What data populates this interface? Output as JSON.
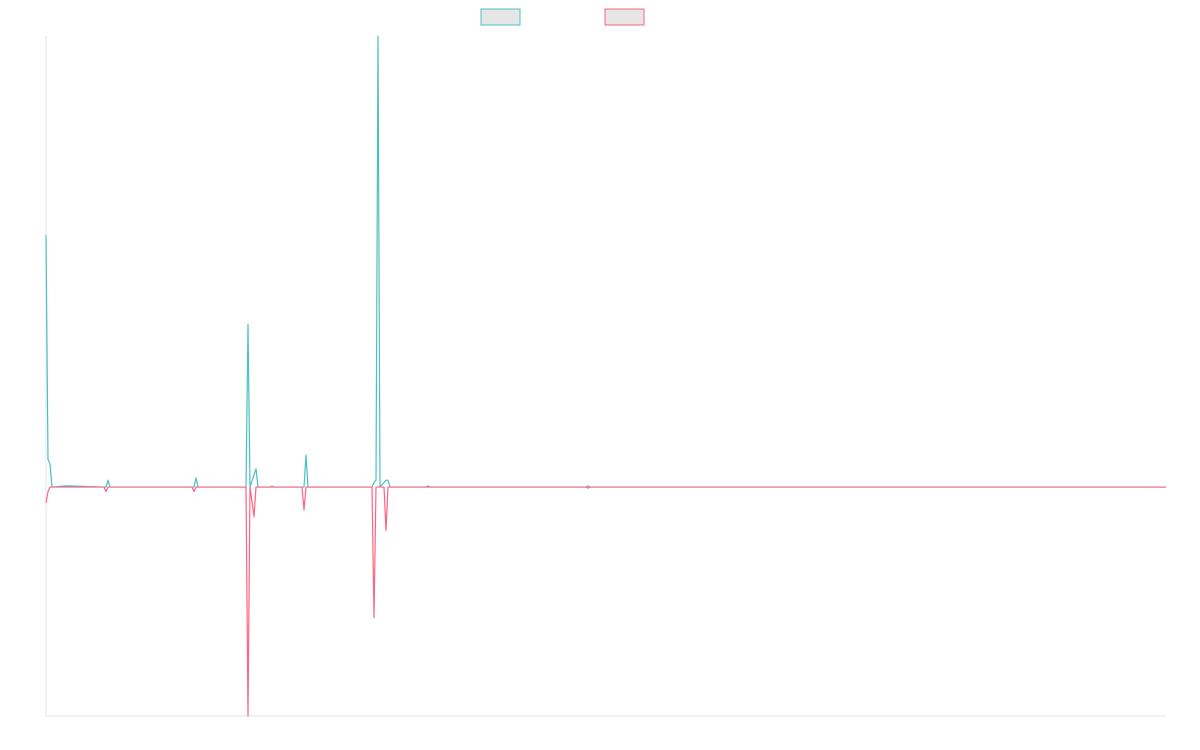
{
  "chart_data": {
    "type": "line",
    "title": "",
    "xlabel": "",
    "ylabel": "",
    "grid": false,
    "legend": {
      "position": "top-center"
    },
    "x_range": [
      0,
      560
    ],
    "ylim": [
      -1.0,
      1.97
    ],
    "series": [
      {
        "color": "#4bc0c0",
        "fill": "#e6e6e6",
        "points": [
          [
            0,
            1.1
          ],
          [
            1,
            0.12
          ],
          [
            2,
            0.1
          ],
          [
            3,
            0.0
          ],
          [
            10,
            0.005
          ],
          [
            30,
            0.0
          ],
          [
            31,
            0.03
          ],
          [
            32,
            0.0
          ],
          [
            74,
            0.0
          ],
          [
            75,
            0.04
          ],
          [
            76,
            0.0
          ],
          [
            100,
            0.0
          ],
          [
            101,
            0.71
          ],
          [
            102,
            0.0
          ],
          [
            105,
            0.08
          ],
          [
            106,
            0.0
          ],
          [
            112,
            0.0
          ],
          [
            113,
            0.004
          ],
          [
            114,
            0.0
          ],
          [
            129,
            0.0
          ],
          [
            130,
            0.14
          ],
          [
            131,
            0.0
          ],
          [
            163,
            0.0
          ],
          [
            164,
            0.02
          ],
          [
            165,
            0.03
          ],
          [
            166,
            1.97
          ],
          [
            167,
            0.0
          ],
          [
            170,
            0.03
          ],
          [
            171,
            0.03
          ],
          [
            172,
            0.0
          ],
          [
            190,
            0.0
          ],
          [
            191,
            0.005
          ],
          [
            192,
            0.0
          ],
          [
            270,
            0.0
          ],
          [
            271,
            0.005
          ],
          [
            272,
            0.0
          ],
          [
            560,
            0.0
          ]
        ]
      },
      {
        "color": "#ff6384",
        "fill": "#e6e6e6",
        "points": [
          [
            0,
            -0.07
          ],
          [
            1,
            -0.02
          ],
          [
            2,
            0.0
          ],
          [
            29,
            0.0
          ],
          [
            30,
            -0.02
          ],
          [
            31,
            0.0
          ],
          [
            73,
            0.0
          ],
          [
            74,
            -0.02
          ],
          [
            75,
            0.0
          ],
          [
            100,
            0.0
          ],
          [
            101,
            -1.0
          ],
          [
            102,
            0.0
          ],
          [
            104,
            -0.13
          ],
          [
            105,
            0.0
          ],
          [
            128,
            0.0
          ],
          [
            129,
            -0.1
          ],
          [
            130,
            0.0
          ],
          [
            163,
            0.0
          ],
          [
            164,
            -0.57
          ],
          [
            165,
            0.0
          ],
          [
            169,
            0.0
          ],
          [
            170,
            -0.19
          ],
          [
            171,
            0.0
          ],
          [
            270,
            0.0
          ],
          [
            271,
            -0.005
          ],
          [
            272,
            0.0
          ],
          [
            560,
            0.0
          ]
        ]
      }
    ]
  }
}
